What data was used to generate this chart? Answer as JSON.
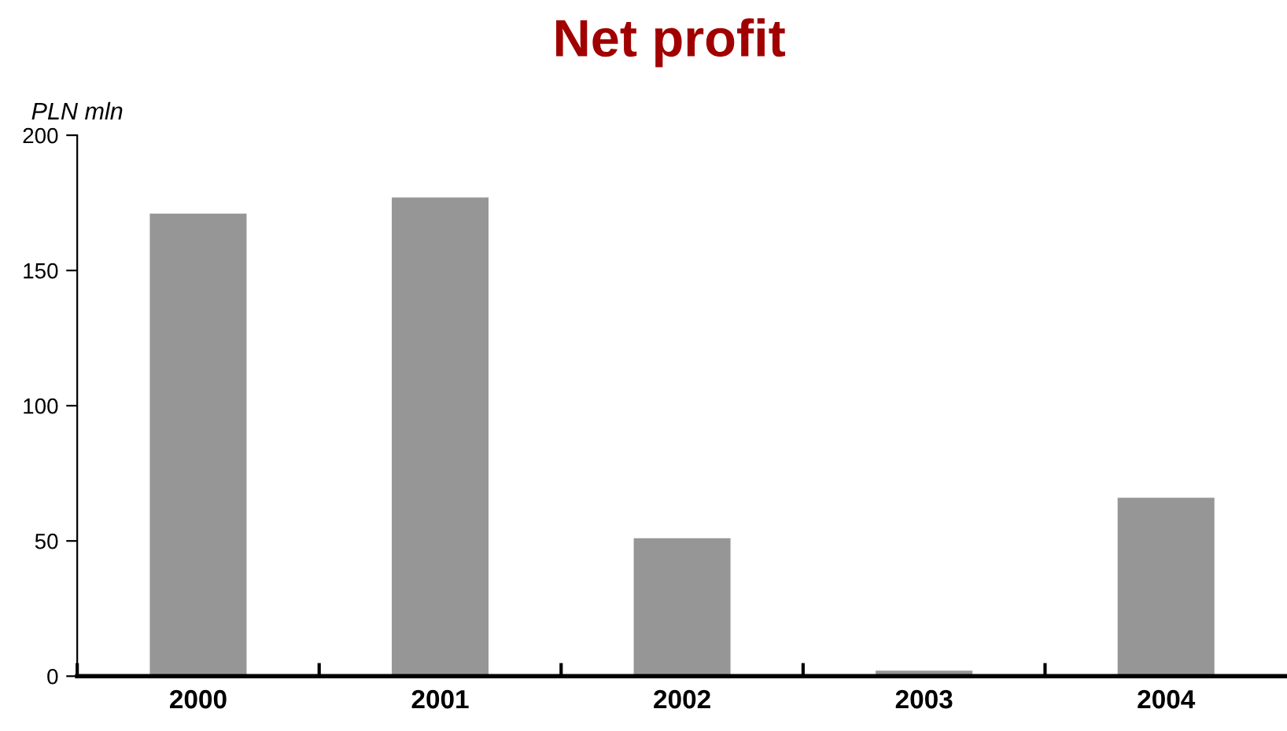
{
  "chart_data": {
    "type": "bar",
    "title": "Net profit",
    "ylabel": "PLN mln",
    "categories": [
      "2000",
      "2001",
      "2002",
      "2003",
      "2004"
    ],
    "values": [
      171,
      177,
      51,
      2,
      66
    ],
    "color": "#969696",
    "ylim": [
      0,
      200
    ],
    "yticks": [
      0,
      50,
      100,
      150,
      200
    ],
    "grid": false,
    "legend": false
  }
}
